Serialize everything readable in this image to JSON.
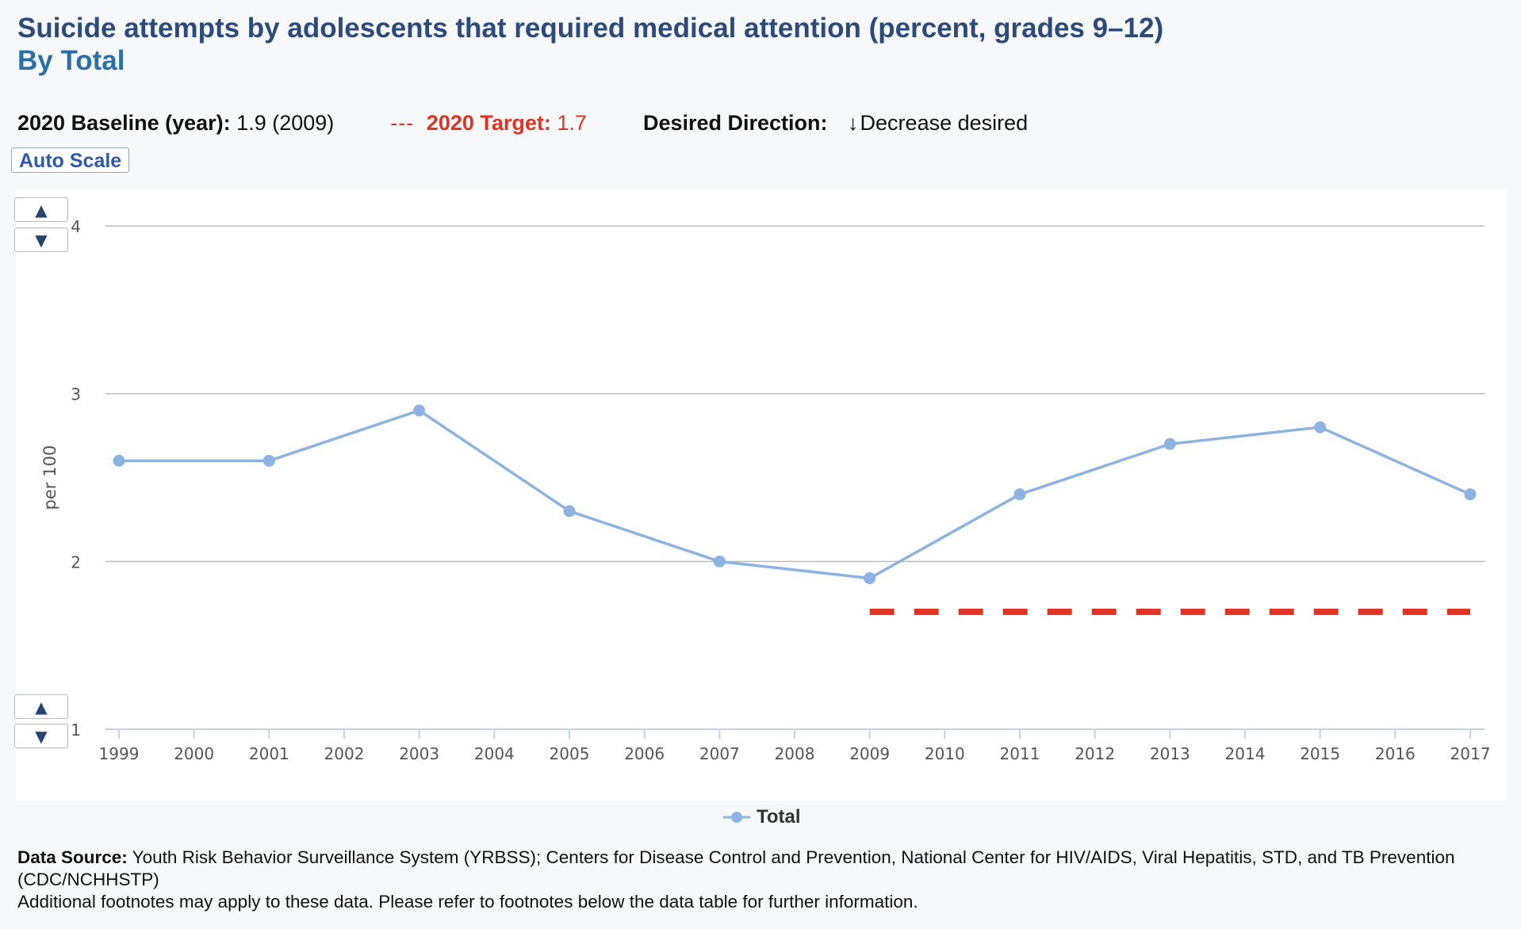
{
  "header": {
    "title": "Suicide attempts by adolescents that required medical attention (percent, grades 9–12)",
    "subtitle": "By Total"
  },
  "info": {
    "baseline_label": "2020 Baseline (year):",
    "baseline_value": "1.9 (2009)",
    "target_dash": "---",
    "target_label": "2020 Target:",
    "target_value": "1.7",
    "direction_label": "Desired Direction:",
    "direction_arrow": "↓",
    "direction_value": "Decrease desired"
  },
  "controls": {
    "auto_scale_label": "Auto Scale",
    "up_glyph": "▲",
    "down_glyph": "▼"
  },
  "colors": {
    "series": "#8db3e2",
    "target": "#e03324",
    "grid": "#bcbcbc",
    "title": "#2c4a7c",
    "subtitle": "#2a6fa8"
  },
  "chart_data": {
    "type": "line",
    "ylabel": "per 100",
    "ylim": [
      1,
      4
    ],
    "yticks": [
      1,
      2,
      3,
      4
    ],
    "x": [
      "1999",
      "2000",
      "2001",
      "2002",
      "2003",
      "2004",
      "2005",
      "2006",
      "2007",
      "2008",
      "2009",
      "2010",
      "2011",
      "2012",
      "2013",
      "2014",
      "2015",
      "2016",
      "2017"
    ],
    "series": [
      {
        "name": "Total",
        "points": [
          {
            "x": "1999",
            "y": 2.6
          },
          {
            "x": "2001",
            "y": 2.6
          },
          {
            "x": "2003",
            "y": 2.9
          },
          {
            "x": "2005",
            "y": 2.3
          },
          {
            "x": "2007",
            "y": 2.0
          },
          {
            "x": "2009",
            "y": 1.9
          },
          {
            "x": "2011",
            "y": 2.4
          },
          {
            "x": "2013",
            "y": 2.7
          },
          {
            "x": "2015",
            "y": 2.8
          },
          {
            "x": "2017",
            "y": 2.4
          }
        ]
      }
    ],
    "target_line": {
      "value": 1.7,
      "from": "2009",
      "to": "2017"
    },
    "grid": true,
    "legend": "bottom-center"
  },
  "footer": {
    "source_label": "Data Source:",
    "source_text": "Youth Risk Behavior Surveillance System (YRBSS); Centers for Disease Control and Prevention, National Center for HIV/AIDS, Viral Hepatitis, STD, and TB Prevention (CDC/NCHHSTP)",
    "note": "Additional footnotes may apply to these data. Please refer to footnotes below the data table for further information."
  }
}
